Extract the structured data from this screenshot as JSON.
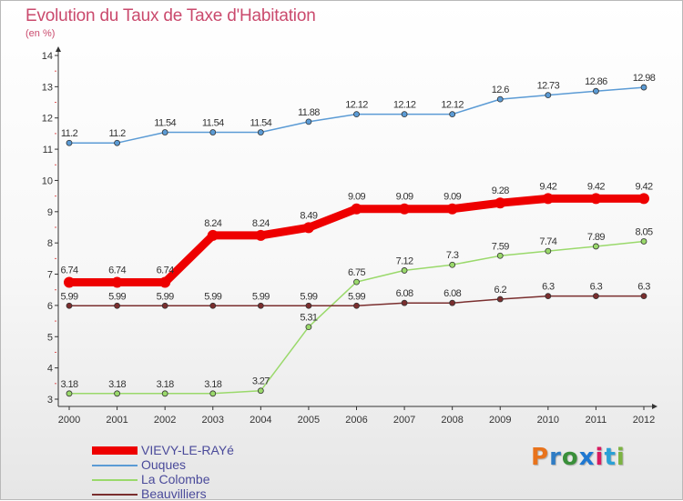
{
  "title": "Evolution du Taux de Taxe d'Habitation",
  "subtitle": "(en %)",
  "brand": {
    "letters": [
      "P",
      "r",
      "o",
      "x",
      "i",
      "t",
      "i"
    ],
    "colors": [
      "#e8731c",
      "#2f7cc4",
      "#3a8f3a",
      "#1f78d1",
      "#d81b60",
      "#2aa0d6",
      "#7cb342"
    ]
  },
  "chart_data": {
    "type": "line",
    "x": [
      "2000",
      "2001",
      "2002",
      "2003",
      "2004",
      "2005",
      "2006",
      "2007",
      "2008",
      "2009",
      "2010",
      "2011",
      "2012"
    ],
    "ylim": [
      3,
      14
    ],
    "yticks": [
      "3",
      "4",
      "5",
      "6",
      "7",
      "8",
      "9",
      "10",
      "11",
      "12",
      "13",
      "14"
    ],
    "grid": false,
    "legend": "bottom-left",
    "series": [
      {
        "name": "Ouques",
        "color": "#5b9bd5",
        "values": [
          11.2,
          11.2,
          11.54,
          11.54,
          11.54,
          11.88,
          12.12,
          12.12,
          12.12,
          12.6,
          12.73,
          12.86,
          12.98
        ],
        "labels": [
          "11.2",
          "11.2",
          "11.54",
          "11.54",
          "11.54",
          "11.88",
          "12.12",
          "12.12",
          "12.12",
          "12.6",
          "12.73",
          "12.86",
          "12.98"
        ]
      },
      {
        "name": "La Colombe",
        "color": "#9ad96b",
        "values": [
          3.18,
          3.18,
          3.18,
          3.18,
          3.27,
          5.31,
          6.75,
          7.12,
          7.3,
          7.59,
          7.74,
          7.89,
          8.05
        ],
        "labels": [
          "3.18",
          "3.18",
          "3.18",
          "3.18",
          "3.27",
          "5.31",
          "6.75",
          "7.12",
          "7.3",
          "7.59",
          "7.74",
          "7.89",
          "8.05"
        ]
      },
      {
        "name": "Beauvilliers",
        "color": "#7a2e2e",
        "values": [
          5.99,
          5.99,
          5.99,
          5.99,
          5.99,
          5.99,
          5.99,
          6.08,
          6.08,
          6.2,
          6.3,
          6.3,
          6.3
        ],
        "labels": [
          "5.99",
          "5.99",
          "5.99",
          "5.99",
          "5.99",
          "5.99",
          "5.99",
          "6.08",
          "6.08",
          "6.2",
          "6.3",
          "6.3",
          "6.3"
        ]
      },
      {
        "name": "VIEVY-LE-RAYé",
        "color": "#ee0000",
        "values": [
          6.74,
          6.74,
          6.74,
          8.24,
          8.24,
          8.49,
          9.09,
          9.09,
          9.09,
          9.28,
          9.42,
          9.42,
          9.42
        ],
        "labels": [
          "6.74",
          "6.74",
          "6.74",
          "8.24",
          "8.24",
          "8.49",
          "9.09",
          "9.09",
          "9.09",
          "9.28",
          "9.42",
          "9.42",
          "9.42"
        ]
      }
    ],
    "legend_entries": [
      {
        "name": "VIEVY-LE-RAYé",
        "color": "#ee0000"
      },
      {
        "name": "Ouques",
        "color": "#5b9bd5"
      },
      {
        "name": "La Colombe",
        "color": "#9ad96b"
      },
      {
        "name": "Beauvilliers",
        "color": "#7a2e2e"
      }
    ]
  }
}
